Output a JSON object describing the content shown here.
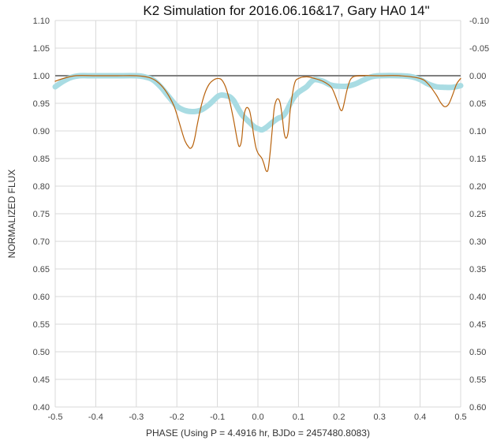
{
  "chart_data": {
    "type": "line",
    "title": "K2 Simulation for 2016.06.16&17, Gary HA0 14\"",
    "xlabel": "PHASE (Using P = 4.4916 hr, BJDo = 2457480.8083)",
    "ylabel": "NORMALIZED FLUX",
    "xlim": [
      -0.5,
      0.5
    ],
    "ylim": [
      0.4,
      1.1
    ],
    "y2lim": [
      -0.1,
      0.6
    ],
    "x_ticks": [
      "-0.5",
      "-0.4",
      "-0.3",
      "-0.2",
      "-0.1",
      "0.0",
      "0.1",
      "0.2",
      "0.3",
      "0.4",
      "0.5"
    ],
    "y_ticks": [
      "1.10",
      "1.05",
      "1.00",
      "0.95",
      "0.90",
      "0.85",
      "0.80",
      "0.75",
      "0.70",
      "0.65",
      "0.60",
      "0.55",
      "0.50",
      "0.45",
      "0.40"
    ],
    "y2_ticks": [
      "-0.10",
      "-0.05",
      "0.00",
      "0.05",
      "0.10",
      "0.15",
      "0.20",
      "0.25",
      "0.30",
      "0.35",
      "0.40",
      "0.45",
      "0.50",
      "0.55",
      "0.60"
    ],
    "grid": true,
    "reference_line": {
      "y": 1.0,
      "color": "#808080"
    },
    "series": [
      {
        "style": "thin",
        "color": "#b8620c",
        "x": [
          -0.5,
          -0.48,
          -0.45,
          -0.4,
          -0.35,
          -0.3,
          -0.27,
          -0.25,
          -0.23,
          -0.21,
          -0.2,
          -0.19,
          -0.18,
          -0.17,
          -0.165,
          -0.16,
          -0.155,
          -0.15,
          -0.14,
          -0.13,
          -0.12,
          -0.11,
          -0.1,
          -0.09,
          -0.08,
          -0.07,
          -0.06,
          -0.05,
          -0.045,
          -0.04,
          -0.035,
          -0.03,
          -0.025,
          -0.02,
          -0.015,
          -0.01,
          -0.005,
          0.0,
          0.005,
          0.01,
          0.015,
          0.02,
          0.025,
          0.03,
          0.035,
          0.04,
          0.045,
          0.05,
          0.055,
          0.06,
          0.065,
          0.07,
          0.075,
          0.08,
          0.09,
          0.1,
          0.12,
          0.14,
          0.16,
          0.18,
          0.19,
          0.2,
          0.205,
          0.21,
          0.22,
          0.23,
          0.25,
          0.3,
          0.35,
          0.4,
          0.42,
          0.44,
          0.45,
          0.46,
          0.47,
          0.48,
          0.49,
          0.5
        ],
        "y": [
          0.99,
          0.995,
          1.0,
          1.0,
          1.0,
          1.0,
          0.997,
          0.99,
          0.975,
          0.95,
          0.93,
          0.905,
          0.882,
          0.87,
          0.869,
          0.875,
          0.89,
          0.91,
          0.945,
          0.97,
          0.985,
          0.992,
          0.995,
          0.993,
          0.98,
          0.955,
          0.92,
          0.88,
          0.872,
          0.885,
          0.925,
          0.94,
          0.942,
          0.935,
          0.915,
          0.89,
          0.87,
          0.86,
          0.855,
          0.85,
          0.84,
          0.828,
          0.83,
          0.86,
          0.9,
          0.94,
          0.955,
          0.958,
          0.95,
          0.925,
          0.895,
          0.887,
          0.9,
          0.94,
          0.985,
          0.995,
          0.998,
          0.995,
          0.99,
          0.98,
          0.965,
          0.945,
          0.937,
          0.942,
          0.975,
          0.995,
          1.0,
          1.0,
          1.0,
          0.995,
          0.985,
          0.965,
          0.952,
          0.944,
          0.948,
          0.965,
          0.985,
          0.995
        ]
      },
      {
        "style": "thick",
        "color": "#a9dce3",
        "x": [
          -0.5,
          -0.48,
          -0.46,
          -0.44,
          -0.42,
          -0.4,
          -0.35,
          -0.3,
          -0.28,
          -0.26,
          -0.24,
          -0.22,
          -0.2,
          -0.18,
          -0.16,
          -0.14,
          -0.12,
          -0.1,
          -0.09,
          -0.08,
          -0.07,
          -0.06,
          -0.05,
          -0.04,
          -0.03,
          -0.02,
          -0.01,
          0.0,
          0.01,
          0.02,
          0.03,
          0.04,
          0.05,
          0.06,
          0.07,
          0.08,
          0.09,
          0.1,
          0.11,
          0.12,
          0.13,
          0.14,
          0.16,
          0.18,
          0.2,
          0.22,
          0.24,
          0.26,
          0.28,
          0.3,
          0.35,
          0.38,
          0.4,
          0.42,
          0.44,
          0.46,
          0.48,
          0.5
        ],
        "y": [
          0.98,
          0.99,
          0.997,
          1.0,
          1.0,
          1.0,
          1.0,
          1.0,
          0.998,
          0.993,
          0.98,
          0.962,
          0.945,
          0.937,
          0.935,
          0.938,
          0.948,
          0.962,
          0.965,
          0.964,
          0.962,
          0.955,
          0.942,
          0.93,
          0.922,
          0.915,
          0.908,
          0.904,
          0.902,
          0.906,
          0.912,
          0.918,
          0.923,
          0.926,
          0.935,
          0.95,
          0.962,
          0.97,
          0.975,
          0.98,
          0.988,
          0.993,
          0.99,
          0.983,
          0.981,
          0.981,
          0.985,
          0.992,
          0.998,
          1.0,
          1.0,
          0.998,
          0.993,
          0.985,
          0.98,
          0.979,
          0.979,
          0.982
        ]
      }
    ]
  }
}
